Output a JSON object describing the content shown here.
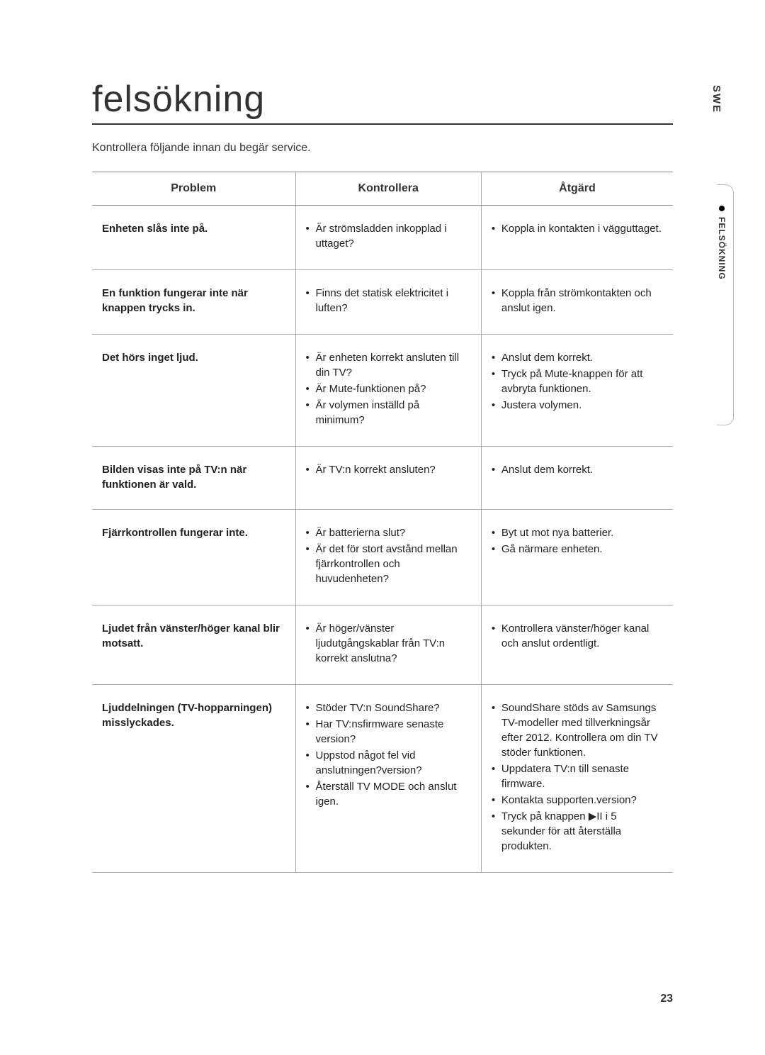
{
  "lang_tag": "SWE",
  "side_section": "FELSÖKNING",
  "title": "felsökning",
  "intro": "Kontrollera följande innan du begär service.",
  "page_number": "23",
  "table": {
    "headers": [
      "Problem",
      "Kontrollera",
      "Åtgärd"
    ],
    "rows": [
      {
        "problem": "Enheten slås inte på.",
        "check": [
          "Är strömsladden inkopplad i uttaget?"
        ],
        "action": [
          "Koppla in kontakten i vägguttaget."
        ]
      },
      {
        "problem": "En funktion fungerar inte när knappen trycks in.",
        "check": [
          "Finns det statisk elektricitet i luften?"
        ],
        "action": [
          "Koppla från strömkontakten och anslut igen."
        ]
      },
      {
        "problem": "Det hörs inget ljud.",
        "check": [
          "Är enheten korrekt ansluten till din TV?",
          "Är Mute-funktionen på?",
          "Är volymen inställd på minimum?"
        ],
        "action": [
          "Anslut dem korrekt.",
          "Tryck på Mute-knappen för att avbryta funktionen.",
          "Justera volymen."
        ]
      },
      {
        "problem": "Bilden visas inte på TV:n när funktionen är vald.",
        "check": [
          "Är TV:n korrekt ansluten?"
        ],
        "action": [
          "Anslut dem korrekt."
        ]
      },
      {
        "problem": "Fjärrkontrollen fungerar inte.",
        "check": [
          "Är batterierna slut?",
          "Är det för stort avstånd mellan fjärrkontrollen och huvudenheten?"
        ],
        "action": [
          "Byt ut mot nya batterier.",
          "Gå närmare enheten."
        ]
      },
      {
        "problem": "Ljudet från vänster/höger kanal blir motsatt.",
        "check": [
          "Är höger/vänster ljudutgångskablar från TV:n korrekt anslutna?"
        ],
        "action": [
          "Kontrollera vänster/höger kanal och anslut ordentligt."
        ]
      },
      {
        "problem": "Ljuddelningen (TV-hopparningen) misslyckades.",
        "check": [
          "Stöder TV:n SoundShare?",
          "Har TV:nsfirmware senaste version?",
          "Uppstod något fel vid anslutningen?version?",
          "Återställ TV MODE och anslut igen."
        ],
        "action": [
          "SoundShare stöds av Samsungs TV-modeller med tillverkningsår efter 2012. Kontrollera om din TV stöder funktionen.",
          "Uppdatera TV:n till senaste firmware.",
          "Kontakta supporten.version?",
          "Tryck på knappen ▶II i 5 sekunder för att återställa produkten."
        ]
      }
    ]
  }
}
